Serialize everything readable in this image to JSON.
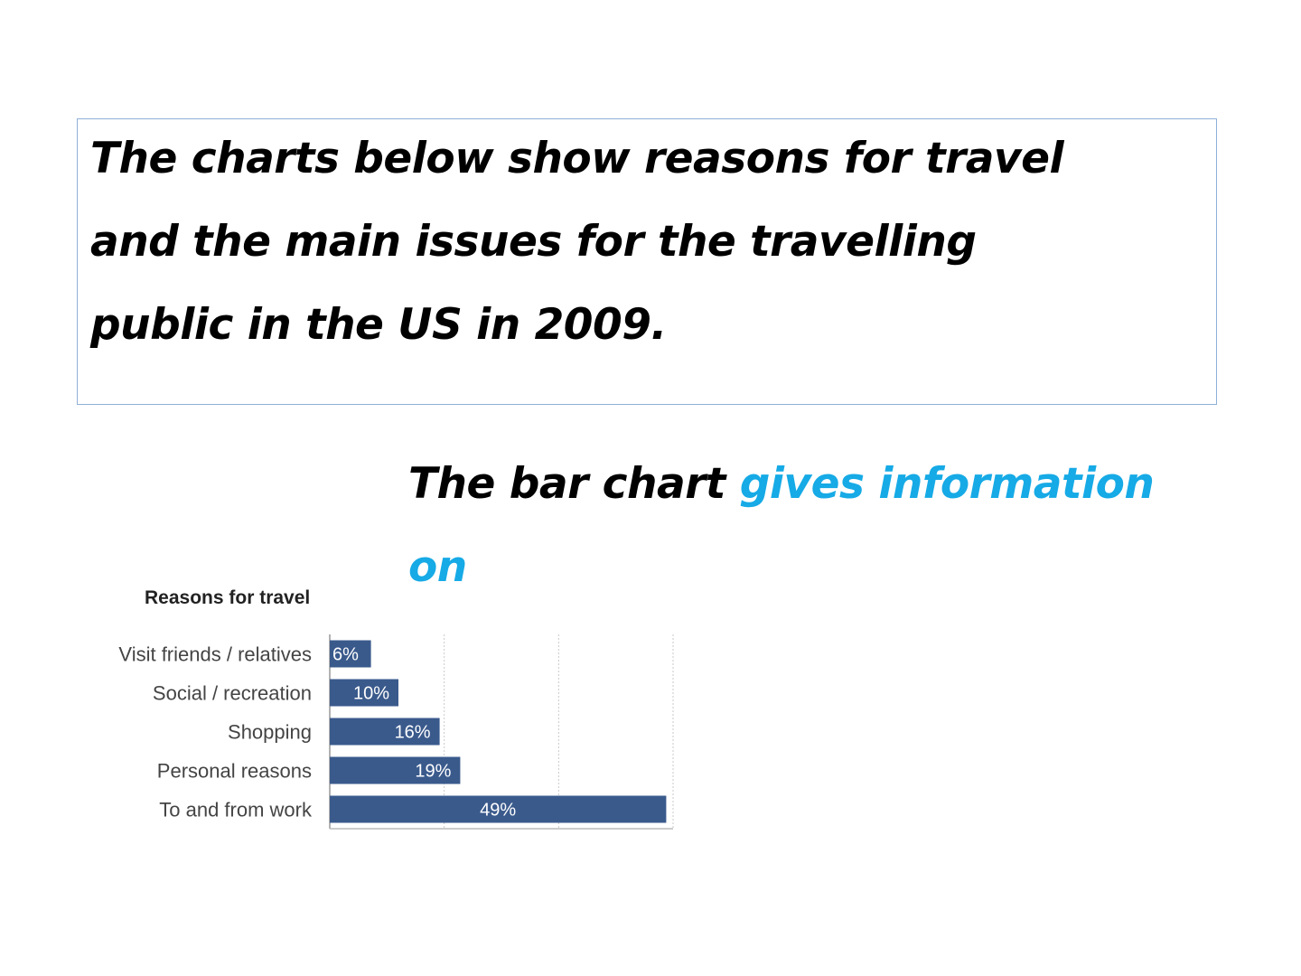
{
  "prompt": {
    "lines": [
      "The charts below show reasons for travel",
      "and the main issues for the travelling",
      "public in the US in 2009."
    ]
  },
  "answer": {
    "black_text": "The bar chart ",
    "blue_text_1": "gives information",
    "blue_text_2": "on"
  },
  "colors": {
    "bar": "#3a5a8c",
    "accent_text": "#16aae6",
    "box_border": "#8fb0d8"
  },
  "chart_data": {
    "type": "bar",
    "orientation": "horizontal",
    "title": "Reasons for travel",
    "categories": [
      "Visit friends / relatives",
      "Social / recreation",
      "Shopping",
      "Personal reasons",
      "To and from work"
    ],
    "values": [
      6,
      10,
      16,
      19,
      49
    ],
    "value_labels": [
      "6%",
      "10%",
      "16%",
      "19%",
      "49%"
    ],
    "xlim": [
      0,
      50
    ],
    "grid": true
  }
}
